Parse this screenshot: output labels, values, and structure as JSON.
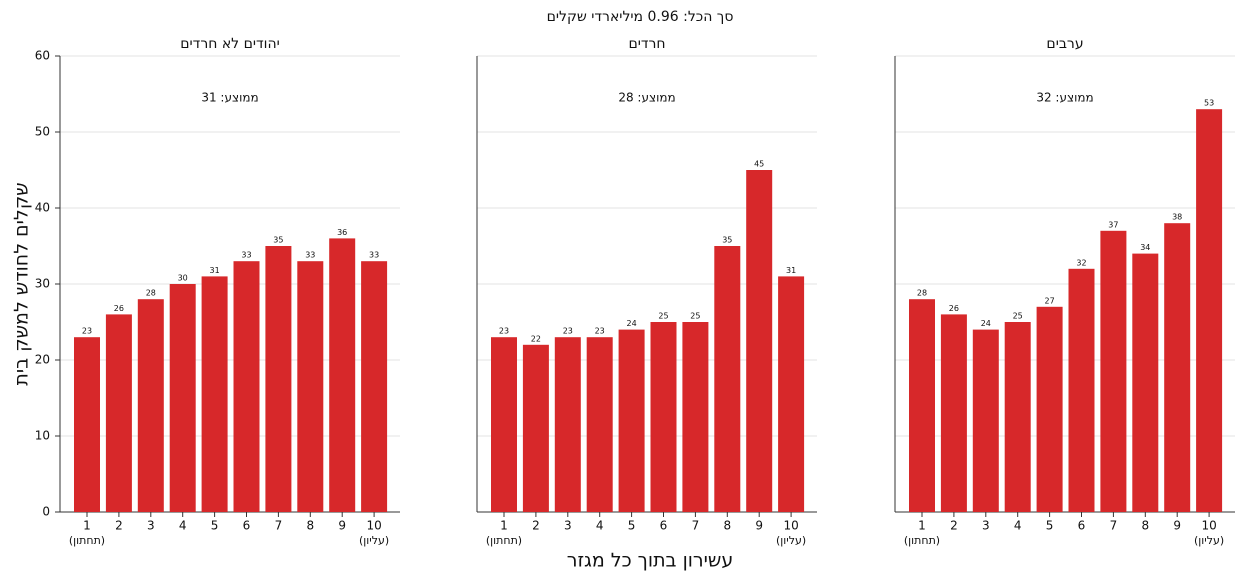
{
  "title": "סך הכל: 0.96 מיליארדי שקלים",
  "y_label": "שקלים לחודש למשק בית",
  "x_label": "עשירון בתוך כל מגזר",
  "chart_data": [
    {
      "type": "bar",
      "title": "יהודים לא חרדים",
      "annotation": "ממוצע: 31",
      "categories": [
        "1",
        "2",
        "3",
        "4",
        "5",
        "6",
        "7",
        "8",
        "9",
        "10"
      ],
      "category_sublabels": [
        "(תחתון)",
        null,
        null,
        null,
        null,
        null,
        null,
        null,
        null,
        "(עליון)"
      ],
      "values": [
        23,
        26,
        28,
        30,
        31,
        33,
        35,
        33,
        36,
        33
      ],
      "color": "#d7282a",
      "ylim": [
        0,
        60
      ],
      "yticks": [
        0,
        10,
        20,
        30,
        40,
        50,
        60
      ],
      "grid": true
    },
    {
      "type": "bar",
      "title": "חרדים",
      "annotation": "ממוצע: 28",
      "categories": [
        "1",
        "2",
        "3",
        "4",
        "5",
        "6",
        "7",
        "8",
        "9",
        "10"
      ],
      "category_sublabels": [
        "(תחתון)",
        null,
        null,
        null,
        null,
        null,
        null,
        null,
        null,
        "(עליון)"
      ],
      "values": [
        23,
        22,
        23,
        23,
        24,
        25,
        25,
        35,
        45,
        31
      ],
      "color": "#d7282a",
      "ylim": [
        0,
        60
      ],
      "yticks": [
        0,
        10,
        20,
        30,
        40,
        50,
        60
      ],
      "grid": true
    },
    {
      "type": "bar",
      "title": "ערבים",
      "annotation": "ממוצע: 32",
      "categories": [
        "1",
        "2",
        "3",
        "4",
        "5",
        "6",
        "7",
        "8",
        "9",
        "10"
      ],
      "category_sublabels": [
        "(תחתון)",
        null,
        null,
        null,
        null,
        null,
        null,
        null,
        null,
        "(עליון)"
      ],
      "values": [
        28,
        26,
        24,
        25,
        27,
        32,
        37,
        34,
        38,
        53
      ],
      "color": "#d7282a",
      "ylim": [
        0,
        60
      ],
      "yticks": [
        0,
        10,
        20,
        30,
        40,
        50,
        60
      ],
      "grid": true
    }
  ]
}
